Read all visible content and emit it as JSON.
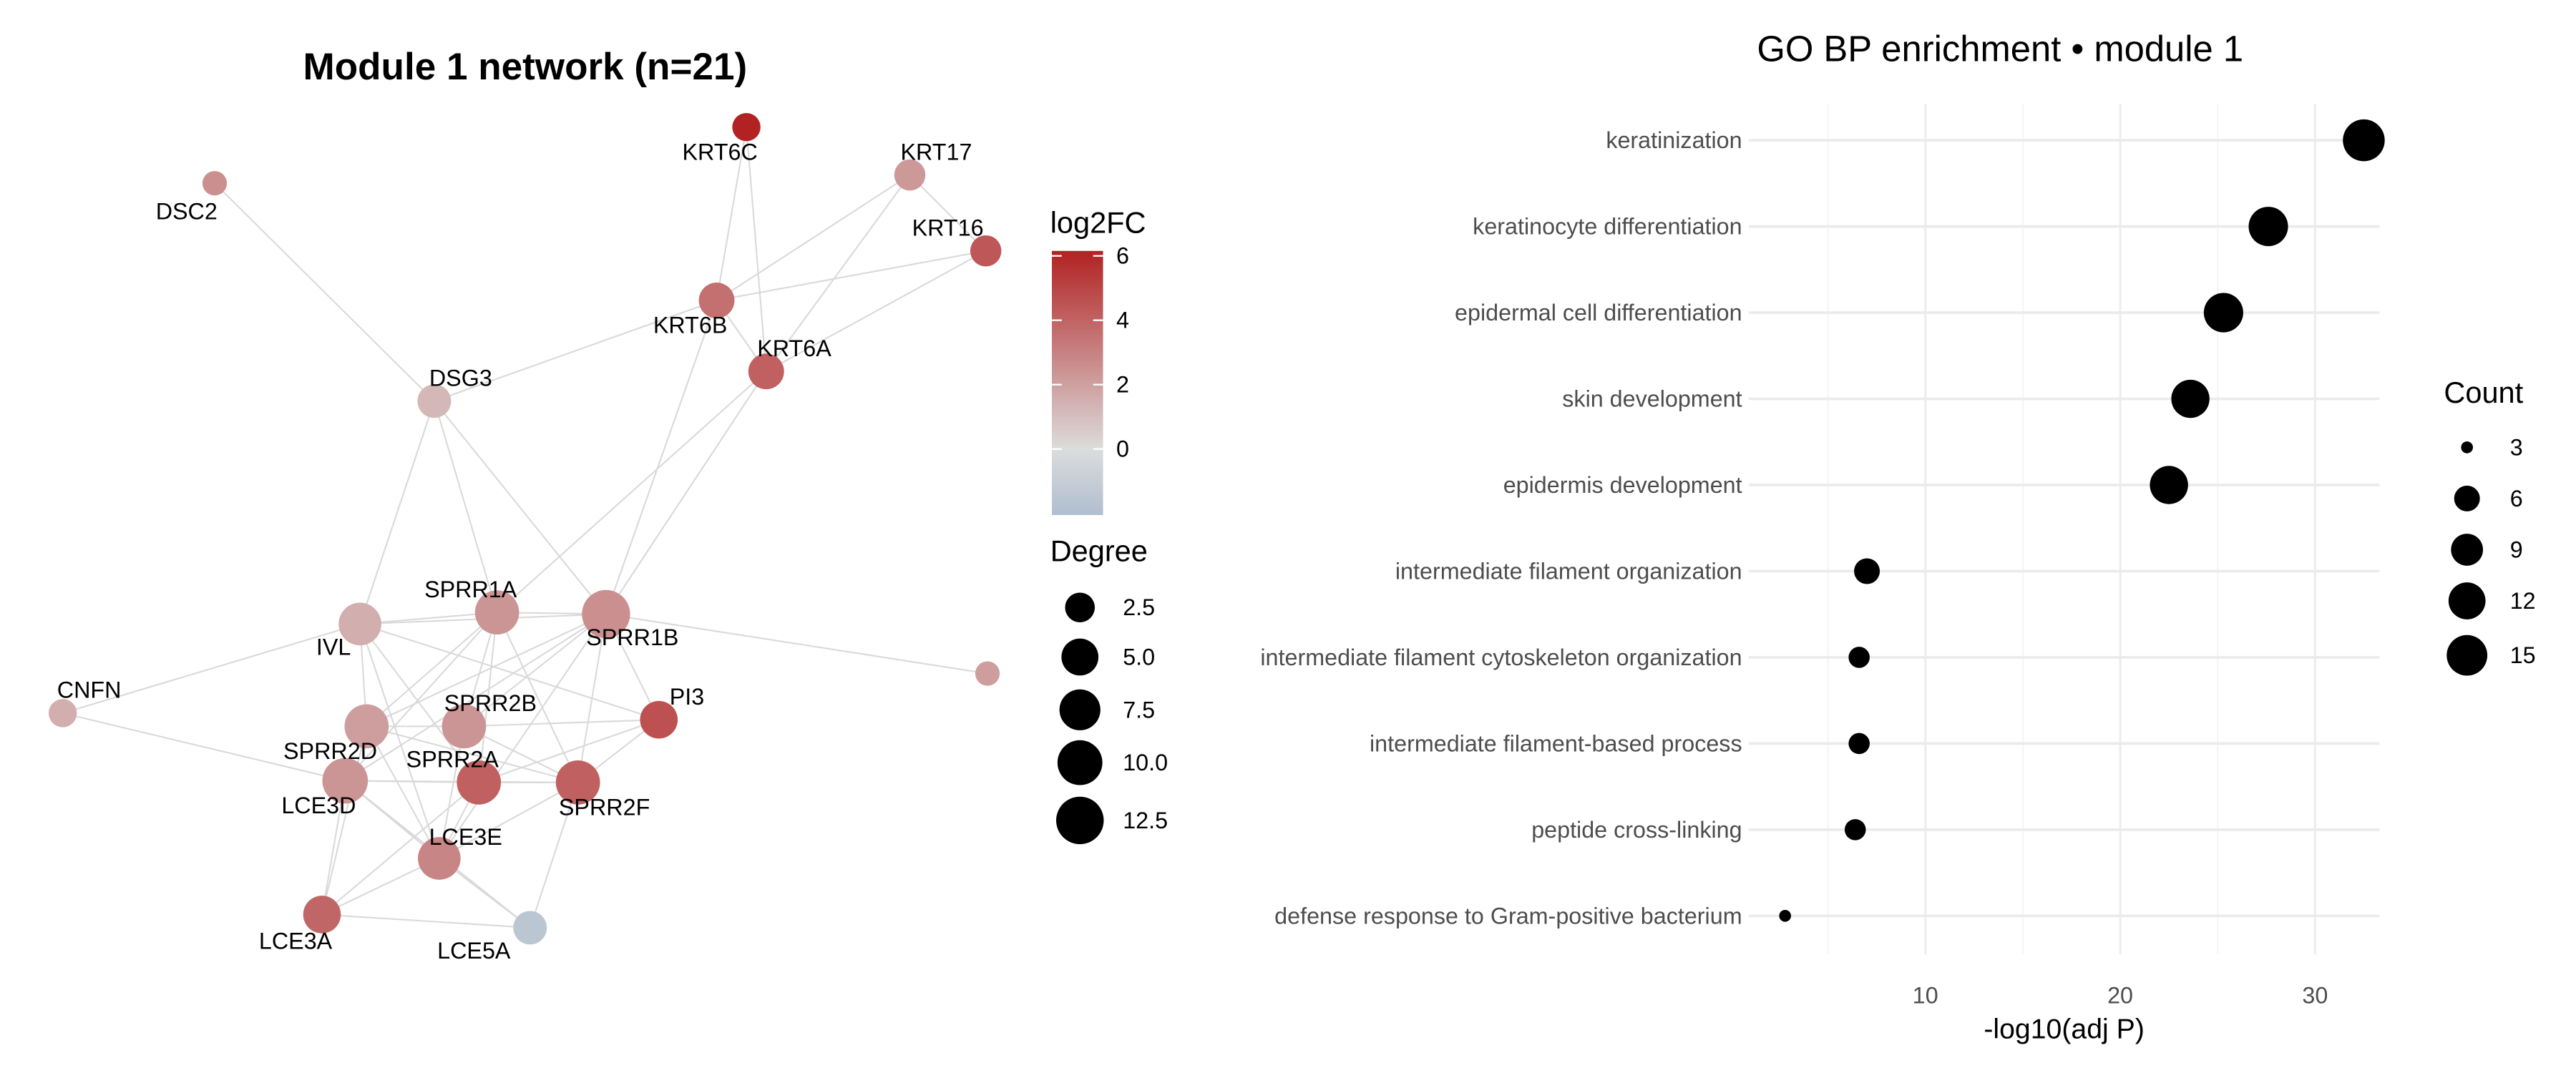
{
  "chart_data": [
    {
      "type": "network",
      "title": "Module 1 network (n=21)",
      "nodes": [
        {
          "name": "KRT6C",
          "log2FC": 6.0,
          "degree": 2
        },
        {
          "name": "KRT17",
          "log2FC": 2.2,
          "degree": 3
        },
        {
          "name": "KRT16",
          "log2FC": 4.3,
          "degree": 3
        },
        {
          "name": "DSC2",
          "log2FC": 2.5,
          "degree": 1
        },
        {
          "name": "KRT6B",
          "log2FC": 3.5,
          "degree": 5
        },
        {
          "name": "KRT6A",
          "log2FC": 4.0,
          "degree": 5
        },
        {
          "name": "DSG3",
          "log2FC": 1.2,
          "degree": 4
        },
        {
          "name": "SPRR1A",
          "log2FC": 2.3,
          "degree": 10
        },
        {
          "name": "SPRR1B",
          "log2FC": 2.5,
          "degree": 13
        },
        {
          "name": "IVL",
          "log2FC": 1.5,
          "degree": 9
        },
        {
          "name": "",
          "log2FC": 2.0,
          "degree": 1
        },
        {
          "name": "CNFN",
          "log2FC": 1.5,
          "degree": 2
        },
        {
          "name": "PI3",
          "log2FC": 4.5,
          "degree": 6
        },
        {
          "name": "SPRR2B",
          "log2FC": 2.3,
          "degree": 10
        },
        {
          "name": "SPRR2D",
          "log2FC": 2.0,
          "degree": 10
        },
        {
          "name": "SPRR2A",
          "log2FC": 4.0,
          "degree": 10
        },
        {
          "name": "SPRR2F",
          "log2FC": 4.0,
          "degree": 10
        },
        {
          "name": "LCE3D",
          "log2FC": 2.3,
          "degree": 11
        },
        {
          "name": "LCE3E",
          "log2FC": 2.8,
          "degree": 9
        },
        {
          "name": "LCE3A",
          "log2FC": 3.8,
          "degree": 6
        },
        {
          "name": "LCE5A",
          "log2FC": -1.5,
          "degree": 4
        }
      ],
      "edges": [
        [
          "DSC2",
          "DSG3"
        ],
        [
          "DSG3",
          "KRT6B"
        ],
        [
          "DSG3",
          "IVL"
        ],
        [
          "DSG3",
          "SPRR1A"
        ],
        [
          "DSG3",
          "SPRR1B"
        ],
        [
          "KRT6C",
          "KRT6B"
        ],
        [
          "KRT6C",
          "KRT6A"
        ],
        [
          "KRT17",
          "KRT6B"
        ],
        [
          "KRT17",
          "KRT16"
        ],
        [
          "KRT17",
          "KRT6A"
        ],
        [
          "KRT16",
          "KRT6B"
        ],
        [
          "KRT16",
          "KRT6A"
        ],
        [
          "KRT6B",
          "KRT6A"
        ],
        [
          "KRT6B",
          "SPRR1B"
        ],
        [
          "KRT6A",
          "SPRR1B"
        ],
        [
          "KRT6A",
          "SPRR1A"
        ],
        [
          "IVL",
          "SPRR1A"
        ],
        [
          "IVL",
          "SPRR1B"
        ],
        [
          "SPRR1A",
          "SPRR1B"
        ],
        [
          "SPRR1B",
          ""
        ],
        [
          "IVL",
          "CNFN"
        ],
        [
          "CNFN",
          "LCE3D"
        ],
        [
          "IVL",
          "SPRR2D"
        ],
        [
          "IVL",
          "PI3"
        ],
        [
          "IVL",
          "SPRR2A"
        ],
        [
          "IVL",
          "LCE3E"
        ],
        [
          "SPRR1A",
          "SPRR2D"
        ],
        [
          "SPRR1A",
          "SPRR2B"
        ],
        [
          "SPRR1A",
          "SPRR2A"
        ],
        [
          "SPRR1A",
          "SPRR2F"
        ],
        [
          "SPRR1A",
          "LCE3D"
        ],
        [
          "SPRR1B",
          "SPRR2D"
        ],
        [
          "SPRR1B",
          "SPRR2B"
        ],
        [
          "SPRR1B",
          "PI3"
        ],
        [
          "SPRR1B",
          "SPRR2F"
        ],
        [
          "SPRR1B",
          "LCE3D"
        ],
        [
          "SPRR1B",
          "LCE3E"
        ],
        [
          "SPRR2D",
          "SPRR2B"
        ],
        [
          "SPRR2D",
          "SPRR2F"
        ],
        [
          "SPRR2D",
          "LCE3E"
        ],
        [
          "SPRR2B",
          "PI3"
        ],
        [
          "SPRR2B",
          "SPRR2F"
        ],
        [
          "SPRR2B",
          "LCE3E"
        ],
        [
          "PI3",
          "SPRR2F"
        ],
        [
          "PI3",
          "SPRR2A"
        ],
        [
          "LCE3D",
          "SPRR2A"
        ],
        [
          "LCE3D",
          "SPRR2F"
        ],
        [
          "LCE3D",
          "LCE3A"
        ],
        [
          "LCE3D",
          "LCE5A"
        ],
        [
          "LCE3D",
          "LCE3E"
        ],
        [
          "SPRR2A",
          "SPRR2F"
        ],
        [
          "SPRR2A",
          "LCE3E"
        ],
        [
          "SPRR2A",
          "LCE3A"
        ],
        [
          "SPRR2F",
          "LCE3E"
        ],
        [
          "SPRR2F",
          "LCE5A"
        ],
        [
          "LCE3E",
          "LCE5A"
        ],
        [
          "LCE3A",
          "LCE5A"
        ],
        [
          "LCE3E",
          "LCE3A"
        ],
        [
          "SPRR2D",
          "LCE3A"
        ]
      ],
      "color_legend": {
        "title": "log2FC",
        "ticks": [
          "6",
          "4",
          "2",
          "0"
        ],
        "limits": [
          -1.9,
          6.1
        ],
        "colors": {
          "low": "#b0bed0",
          "mid": "#dcdcdc",
          "high": "#b22222"
        }
      },
      "size_legend": {
        "title": "Degree",
        "breaks": [
          "2.5",
          "5.0",
          "7.5",
          "10.0",
          "12.5"
        ]
      },
      "edge_color": "#d9d9d9"
    },
    {
      "type": "scatter",
      "title": "GO BP enrichment • module 1",
      "xlabel": "-log10(adj P)",
      "ylabel": "",
      "xlim": [
        1.5,
        33.5
      ],
      "xticks": [
        "10",
        "20",
        "30"
      ],
      "grid": true,
      "legend_position": "right",
      "categories": [
        "keratinization",
        "keratinocyte differentiation",
        "epidermal cell differentiation",
        "skin development",
        "epidermis development",
        "intermediate filament organization",
        "intermediate filament cytoskeleton organization",
        "intermediate filament-based process",
        "peptide cross-linking",
        "defense response to Gram-positive bacterium"
      ],
      "x": [
        32.5,
        27.6,
        25.3,
        23.6,
        22.5,
        7.0,
        6.6,
        6.6,
        6.4,
        2.8
      ],
      "count": [
        16,
        14,
        14,
        13,
        13,
        6,
        5,
        5,
        5,
        3
      ],
      "point_color": "#000000",
      "size_legend": {
        "title": "Count",
        "breaks": [
          "3",
          "6",
          "9",
          "12",
          "15"
        ]
      }
    }
  ]
}
